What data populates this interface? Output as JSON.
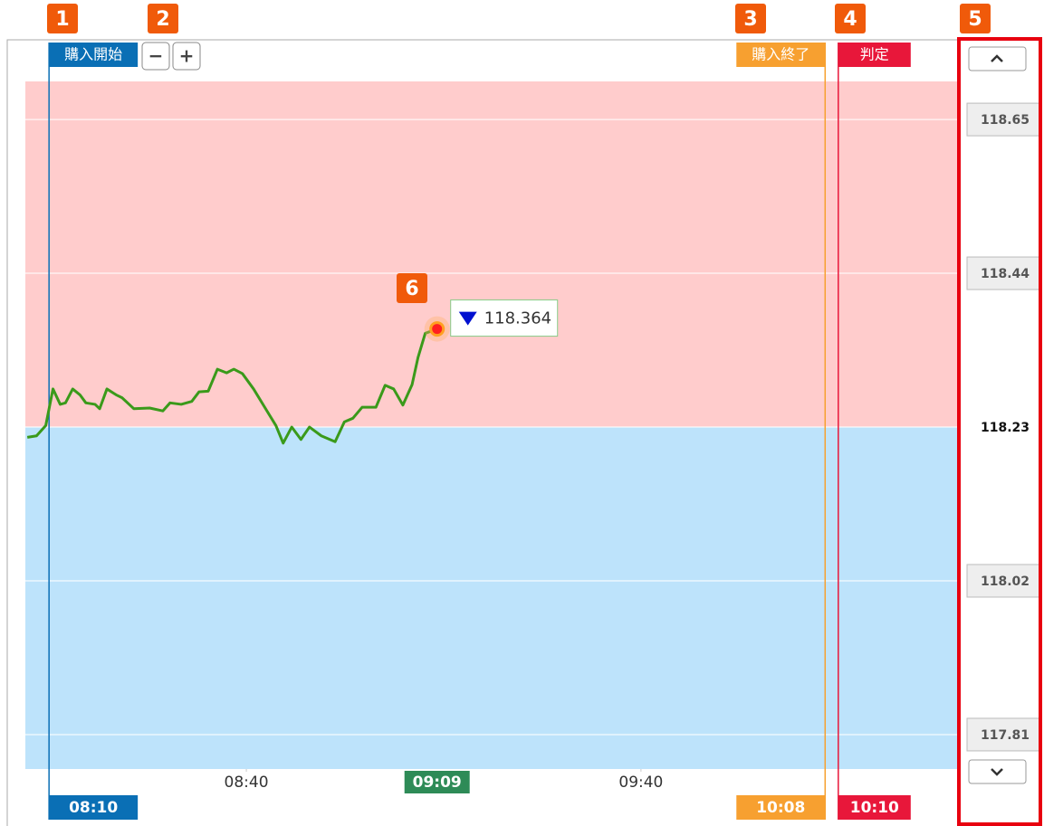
{
  "chart_data": {
    "type": "line",
    "series": [
      {
        "color": "#3a9a1a",
        "x": [
          486.7,
          488.1,
          489.5,
          490.6,
          491.7,
          492.5,
          493.6,
          494.7,
          495.6,
          497.0,
          497.7,
          498.8,
          500.2,
          501.1,
          502.9,
          505.3,
          507.3,
          508.4,
          510.1,
          511.7,
          512.8,
          514.2,
          515.6,
          517.0,
          518.1,
          519.4,
          521.1,
          523.2,
          524.5,
          525.6,
          526.9,
          528.3,
          529.6,
          531.4,
          533.5,
          534.9,
          536.2,
          537.6,
          539.7,
          541.1,
          542.4,
          543.8,
          545.2,
          546.1,
          547.2,
          549
        ],
        "values": [
          118.216,
          118.218,
          118.232,
          118.282,
          118.261,
          118.263,
          118.282,
          118.274,
          118.263,
          118.261,
          118.255,
          118.282,
          118.274,
          118.27,
          118.255,
          118.256,
          118.252,
          118.263,
          118.261,
          118.265,
          118.278,
          118.279,
          118.309,
          118.304,
          118.309,
          118.303,
          118.282,
          118.251,
          118.232,
          118.208,
          118.23,
          118.213,
          118.23,
          118.218,
          118.21,
          118.237,
          118.242,
          118.257,
          118.257,
          118.287,
          118.282,
          118.26,
          118.288,
          118.325,
          118.358,
          118.364
        ]
      }
    ],
    "xlim": [
      486.4,
      628.2
    ],
    "xticks": [
      {
        "value": 520,
        "label": "08:40"
      },
      {
        "value": 580,
        "label": "09:40"
      }
    ],
    "ylim": [
      117.763,
      118.702
    ],
    "yticks": [
      118.65,
      118.44,
      118.23,
      118.02,
      117.81
    ],
    "strike": 118.23,
    "up_color": "#ffcccc",
    "down_color": "#bde3fb",
    "markers": [
      {
        "label": "購入開始",
        "time": {
          "value": 490,
          "label": "08:10"
        },
        "color": "#0a6fb5"
      },
      {
        "label": "購入終了",
        "time": {
          "value": 608,
          "label": "10:08"
        },
        "color": "#f7a030"
      },
      {
        "label": "判定",
        "time": {
          "value": 610,
          "label": "10:10"
        },
        "color": "#e8173a"
      }
    ],
    "current_time": {
      "value": 549,
      "label": "09:09"
    },
    "zoom_buttons": [
      "−",
      "+"
    ],
    "callouts": [
      "1",
      "2",
      "3",
      "4",
      "5",
      "6"
    ]
  }
}
